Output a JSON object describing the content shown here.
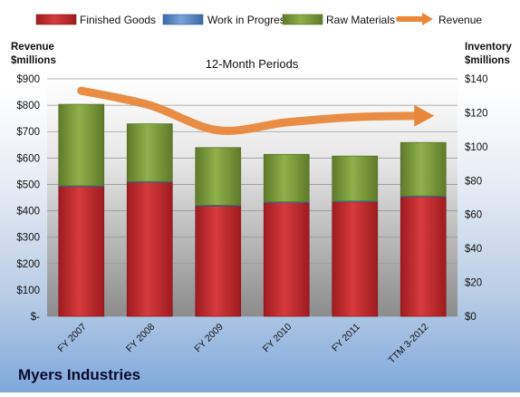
{
  "company_name": "Myers Industries",
  "chart_data": {
    "type": "bar",
    "title": "12-Month Periods",
    "categories": [
      "FY 2007",
      "FY 2008",
      "FY 2009",
      "FY 2010",
      "FY 2011",
      "TTM 3-2012"
    ],
    "left_axis": {
      "label_line1": "Revenue",
      "label_line2": "$millions",
      "range": [
        0,
        900
      ],
      "step": 100,
      "tick_labels": [
        "$-",
        "$100",
        "$200",
        "$300",
        "$400",
        "$500",
        "$600",
        "$700",
        "$800",
        "$900"
      ]
    },
    "right_axis": {
      "label_line1": "Inventory",
      "label_line2": "$millions",
      "range": [
        0,
        140
      ],
      "step": 20,
      "tick_labels": [
        "$0",
        "$20",
        "$40",
        "$60",
        "$80",
        "$100",
        "$120",
        "$140"
      ]
    },
    "series": [
      {
        "name": "Finished Goods",
        "type": "stacked-bar",
        "axis": "right",
        "color": "#c0272d",
        "values": [
          76.5,
          79,
          65,
          67,
          67.5,
          70.5
        ]
      },
      {
        "name": "Work in Progress",
        "type": "stacked-bar",
        "axis": "right",
        "color": "#4f81bd",
        "values": [
          0.5,
          0.5,
          0.5,
          0.5,
          0.5,
          0.5
        ]
      },
      {
        "name": "Raw Materials",
        "type": "stacked-bar",
        "axis": "right",
        "color": "#77933c",
        "values": [
          48,
          34,
          34,
          28,
          26.5,
          31.5
        ]
      },
      {
        "name": "Revenue",
        "type": "line",
        "axis": "left",
        "color": "#e8863a",
        "values": [
          855,
          800,
          705,
          735,
          755,
          760
        ]
      }
    ],
    "legend_position": "top",
    "grid": true
  }
}
